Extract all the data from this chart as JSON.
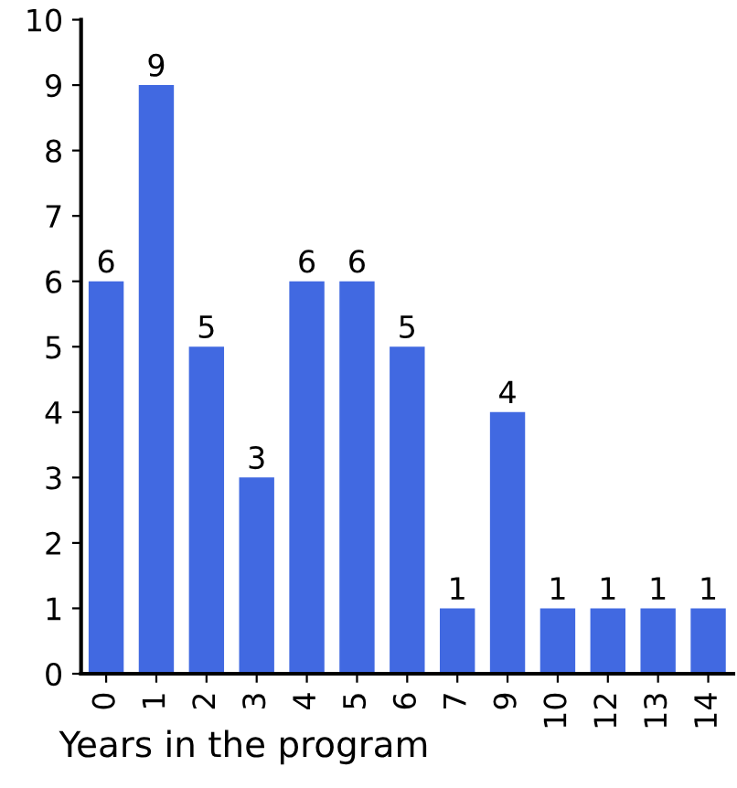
{
  "chart_data": {
    "type": "bar",
    "xlabel": "Years in the program",
    "categories": [
      "0",
      "1",
      "2",
      "3",
      "4",
      "5",
      "6",
      "7",
      "9",
      "10",
      "12",
      "13",
      "14"
    ],
    "values": [
      6,
      9,
      5,
      3,
      6,
      6,
      5,
      1,
      4,
      1,
      1,
      1,
      1
    ],
    "color": "#4169e1",
    "ylim": [
      0,
      10
    ],
    "yticks": [
      0,
      1,
      2,
      3,
      4,
      5,
      6,
      7,
      8,
      9,
      10
    ],
    "data_labels": true,
    "grid": false
  }
}
